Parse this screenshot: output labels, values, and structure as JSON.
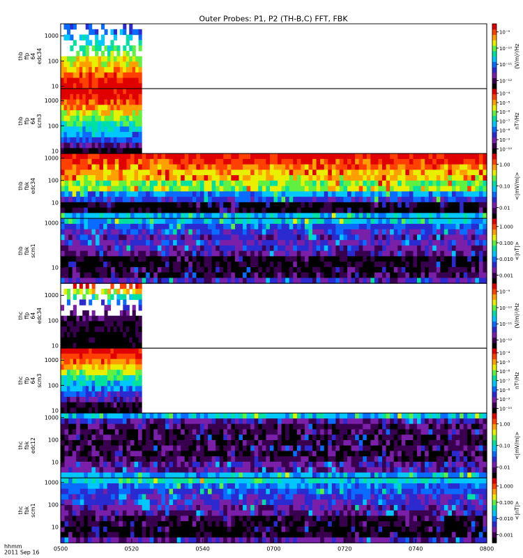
{
  "title": "Outer Probes: P1, P2 (TH-B,C) FFT, FBK",
  "x_axis": {
    "ticks": [
      "0500",
      "0520",
      "0540",
      "0700",
      "0720",
      "0740",
      "0800"
    ],
    "label_line1": "hhmm",
    "label_line2": "2011 Sep 16"
  },
  "colorscale": [
    "#000000",
    "#3a0050",
    "#7a1fa8",
    "#2a2ad0",
    "#0a6cff",
    "#00c8ff",
    "#00e0a0",
    "#60f040",
    "#e8f000",
    "#ffa000",
    "#ff4000",
    "#e00000"
  ],
  "chart_data": [
    {
      "type": "heatmap",
      "panel": "thb_ffp_64_edc34",
      "ylabel": [
        "thb",
        "ffp",
        "64",
        "edc34"
      ],
      "yticks": [
        "10",
        "100",
        "1000"
      ],
      "ylog": [
        8,
        3000
      ],
      "cbar_ticks": [
        "10⁻⁹",
        "10⁻¹⁰",
        "10⁻¹¹",
        "10⁻¹²"
      ],
      "cbar_label": "(V/m)²/Hz",
      "data_end_frac": 0.19,
      "profile": [
        0.32,
        0.38,
        0.46,
        0.5,
        0.56,
        0.62,
        0.68,
        0.74,
        0.8,
        0.86,
        0.92,
        0.97
      ],
      "sparse": true
    },
    {
      "type": "heatmap",
      "panel": "thb_ffp_64_scm3",
      "ylabel": [
        "thb",
        "ffp",
        "64",
        "scm3"
      ],
      "yticks": [
        "10",
        "100",
        "1000"
      ],
      "ylog": [
        8,
        3000
      ],
      "cbar_ticks": [
        "10⁻⁴",
        "10⁻⁵",
        "10⁻⁶",
        "10⁻⁷",
        "10⁻⁸",
        "10⁻⁹",
        "10⁻¹⁰"
      ],
      "cbar_label": "nT²/Hz",
      "data_end_frac": 0.19,
      "profile": [
        0.99,
        0.95,
        0.88,
        0.8,
        0.7,
        0.62,
        0.55,
        0.48,
        0.42,
        0.35,
        0.2,
        0.05
      ],
      "sparse": false
    },
    {
      "type": "heatmap",
      "panel": "thb_fbk_edc34",
      "ylabel": [
        "thb",
        "fbk",
        "edc34"
      ],
      "yticks": [
        "10",
        "100",
        "1000"
      ],
      "ylog": [
        2,
        1600
      ],
      "cbar_ticks": [
        "1.00",
        "0.10",
        "0.01"
      ],
      "cbar_label": "<|mV/m|>",
      "data_end_frac": 1.0,
      "profile": [
        0.96,
        0.9,
        0.82,
        0.75,
        0.75,
        0.64,
        0.64,
        0.4,
        0.3,
        0.05,
        0.05,
        0.45
      ],
      "sparse": false
    },
    {
      "type": "heatmap",
      "panel": "thb_fbk_scm1",
      "ylabel": [
        "thb",
        "fbk",
        "scm1"
      ],
      "yticks": [
        "10",
        "1000"
      ],
      "ylog": [
        2,
        1600
      ],
      "cbar_ticks": [
        "1.000",
        "0.100",
        "0.010",
        "0.001"
      ],
      "cbar_label": "<|nT|>",
      "data_end_frac": 1.0,
      "profile": [
        0.45,
        0.35,
        0.28,
        0.22,
        0.26,
        0.22,
        0.18,
        0.05,
        0.05,
        0.1,
        0.1,
        0.25
      ],
      "sparse": false
    },
    {
      "type": "heatmap",
      "panel": "thc_ffp_64_edc34",
      "ylabel": [
        "thc",
        "ffp",
        "64",
        "edc34"
      ],
      "yticks": [
        "10",
        "100",
        "1000"
      ],
      "ylog": [
        8,
        3000
      ],
      "cbar_ticks": [
        "10⁻⁹",
        "10⁻¹⁰",
        "10⁻¹¹",
        "10⁻¹²"
      ],
      "cbar_label": "(V/m)²/Hz",
      "data_end_frac": 0.19,
      "profile": [
        0.95,
        0.7,
        0.55,
        0.4,
        0.28,
        0.18,
        0.12,
        0.08,
        0.06,
        0.04,
        0.03,
        0.02
      ],
      "sparse": true
    },
    {
      "type": "heatmap",
      "panel": "thc_ffp_64_scm3",
      "ylabel": [
        "thc",
        "ffp",
        "64",
        "scm3"
      ],
      "yticks": [
        "10",
        "100",
        "1000"
      ],
      "ylog": [
        8,
        3000
      ],
      "cbar_ticks": [
        "10⁻⁴",
        "10⁻⁵",
        "10⁻⁶",
        "10⁻⁷",
        "10⁻⁸",
        "10⁻⁹",
        "10⁻¹⁰"
      ],
      "cbar_label": "nT²/Hz",
      "data_end_frac": 0.19,
      "profile": [
        0.99,
        0.92,
        0.85,
        0.76,
        0.66,
        0.56,
        0.48,
        0.4,
        0.32,
        0.22,
        0.12,
        0.05
      ],
      "sparse": false
    },
    {
      "type": "heatmap",
      "panel": "thc_fbk_edc12",
      "ylabel": [
        "thc",
        "fbk",
        "edc12"
      ],
      "yticks": [
        "10",
        "100",
        "1000"
      ],
      "ylog": [
        2,
        1600
      ],
      "cbar_ticks": [
        "1.00",
        "0.10",
        "0.01"
      ],
      "cbar_label": "<|mV/m|>",
      "data_end_frac": 1.0,
      "profile": [
        0.45,
        0.2,
        0.12,
        0.12,
        0.1,
        0.1,
        0.12,
        0.1,
        0.12,
        0.2,
        0.2,
        0.42
      ],
      "sparse": false
    },
    {
      "type": "heatmap",
      "panel": "thc_fbk_scm1",
      "ylabel": [
        "thc",
        "fbk",
        "scm1"
      ],
      "yticks": [
        "10",
        "100",
        "1000"
      ],
      "ylog": [
        2,
        1600
      ],
      "cbar_ticks": [
        "1.000",
        "0.100",
        "0.010",
        "0.001"
      ],
      "cbar_label": "<|nT|>",
      "data_end_frac": 1.0,
      "profile": [
        0.5,
        0.38,
        0.33,
        0.28,
        0.26,
        0.22,
        0.18,
        0.1,
        0.08,
        0.05,
        0.05,
        0.2
      ],
      "sparse": false
    }
  ]
}
